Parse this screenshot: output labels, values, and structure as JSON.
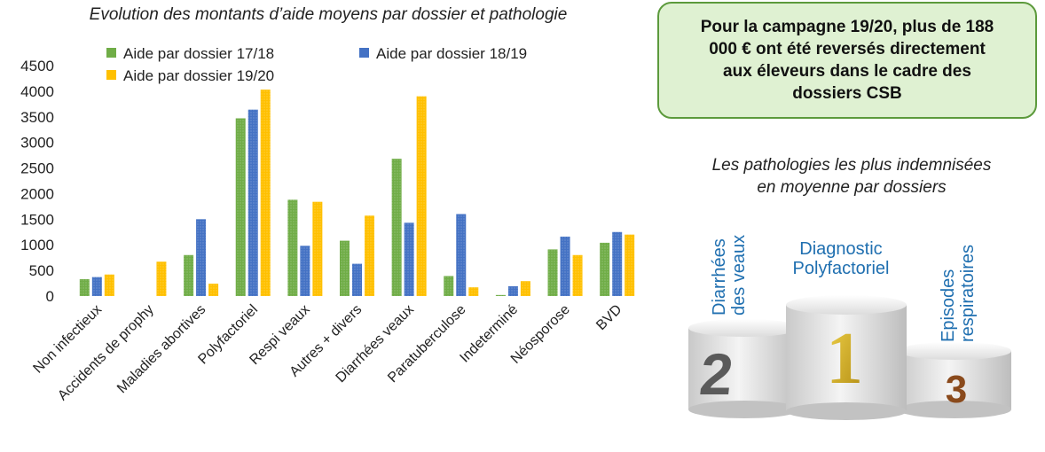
{
  "chart_data": {
    "type": "bar",
    "title": "Evolution des montants d’aide moyens par dossier et pathologie",
    "categories": [
      "Non infectieux",
      "Accidents de prophy",
      "Maladies abortives",
      "Polyfactoriel",
      "Respi veaux",
      "Autres + divers",
      "Diarrhées veaux",
      "Paratuberculose",
      "Indeterminé",
      "Néosporose",
      "BVD"
    ],
    "series": [
      {
        "name": "Aide par dossier 17/18",
        "color": "#70ad47",
        "values": [
          330,
          0,
          800,
          3470,
          1880,
          1080,
          2680,
          390,
          20,
          910,
          1040
        ]
      },
      {
        "name": "Aide par dossier 18/19",
        "color": "#4472c4",
        "values": [
          370,
          0,
          1500,
          3640,
          980,
          630,
          1430,
          1600,
          190,
          1160,
          1250
        ]
      },
      {
        "name": "Aide par dossier 19/20",
        "color": "#ffc000",
        "values": [
          420,
          670,
          240,
          4030,
          1840,
          1570,
          3900,
          170,
          290,
          800,
          1200
        ]
      }
    ],
    "yticks": [
      "4500",
      "4000",
      "3500",
      "3000",
      "2500",
      "2000",
      "1500",
      "1000",
      "500",
      "0"
    ],
    "ylim": [
      0,
      4500
    ],
    "grid": false,
    "legend_position": "top"
  },
  "callout": {
    "text": "Pour la campagne 19/20, plus de 188 000 € ont été reversés directement aux éleveurs dans le cadre des dossiers CSB"
  },
  "podium": {
    "title_line1": "Les pathologies les plus indemnisées",
    "title_line2": "en moyenne par dossiers",
    "first": {
      "rank": "1",
      "line1": "Diagnostic",
      "line2": "Polyfactoriel"
    },
    "second": {
      "rank": "2",
      "line1": "Diarrhées",
      "line2": "des veaux"
    },
    "third": {
      "rank": "3",
      "line1": "Episodes",
      "line2": "respiratoires"
    }
  }
}
